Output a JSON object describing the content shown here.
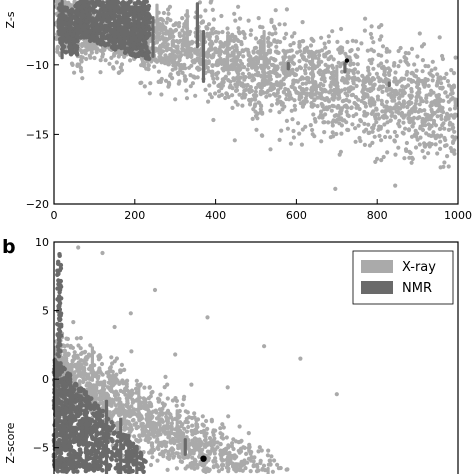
{
  "colors": {
    "xray": "#aaaaaa",
    "nmr": "#6a6a6a",
    "highlight": "#000000",
    "axis": "#000000",
    "background": "#ffffff"
  },
  "chart_data": [
    {
      "panel_label": "",
      "type": "scatter",
      "ylabel": "Z-s",
      "xlabel": "",
      "xlim": [
        0,
        1000
      ],
      "ylim": [
        -20,
        -5
      ],
      "x_ticks": [
        0,
        200,
        400,
        600,
        800,
        1000
      ],
      "x_tick_labels": [
        "0",
        "200",
        "400",
        "600",
        "800",
        "1000"
      ],
      "y_ticks": [
        -10,
        -15,
        -20
      ],
      "y_tick_labels": [
        "−10",
        "−15",
        "−20"
      ],
      "grid": false,
      "legend": null,
      "series": [
        {
          "name": "X-ray",
          "color": "#aaaaaa",
          "description_points": [
            [
              30,
              -6
            ],
            [
              80,
              -7
            ],
            [
              150,
              -7.5
            ],
            [
              220,
              -8
            ],
            [
              300,
              -8.2
            ],
            [
              380,
              -9
            ],
            [
              450,
              -9.5
            ],
            [
              520,
              -10
            ],
            [
              600,
              -10.8
            ],
            [
              680,
              -11.2
            ],
            [
              760,
              -11.8
            ],
            [
              840,
              -12.2
            ],
            [
              920,
              -13
            ],
            [
              980,
              -14
            ]
          ]
        },
        {
          "name": "NMR",
          "color": "#6a6a6a",
          "description_points": [
            [
              10,
              -6.5
            ],
            [
              40,
              -7.5
            ],
            [
              80,
              -8.2
            ],
            [
              120,
              -8
            ],
            [
              160,
              -7.2
            ],
            [
              200,
              -7
            ]
          ]
        }
      ]
    },
    {
      "panel_label": "b",
      "type": "scatter",
      "ylabel": "Z-score",
      "xlabel": "",
      "xlim": [
        0,
        1000
      ],
      "ylim": [
        -7.5,
        10
      ],
      "y_ticks": [
        10,
        5,
        0,
        -5
      ],
      "y_tick_labels": [
        "10",
        "5",
        "0",
        "−5"
      ],
      "grid": false,
      "legend": {
        "placement": "top-right",
        "entries": [
          {
            "label": "X-ray",
            "color": "#aaaaaa"
          },
          {
            "label": "NMR",
            "color": "#6a6a6a"
          }
        ]
      },
      "highlight_point": {
        "x": 370,
        "y": -5.8
      },
      "series": [
        {
          "name": "X-ray",
          "color": "#aaaaaa",
          "description_points": [
            [
              20,
              1.5
            ],
            [
              60,
              -0.5
            ],
            [
              100,
              -1.5
            ],
            [
              160,
              -2.5
            ],
            [
              220,
              -3.2
            ],
            [
              300,
              -4
            ],
            [
              360,
              -4.8
            ],
            [
              440,
              -5.5
            ],
            [
              520,
              -6
            ],
            [
              600,
              -6.5
            ],
            [
              700,
              -7
            ]
          ]
        },
        {
          "name": "NMR",
          "color": "#6a6a6a",
          "description_points": [
            [
              5,
              2
            ],
            [
              30,
              -1
            ],
            [
              60,
              -2.5
            ],
            [
              100,
              -4
            ],
            [
              140,
              -5.5
            ],
            [
              200,
              -7
            ]
          ]
        }
      ]
    }
  ]
}
